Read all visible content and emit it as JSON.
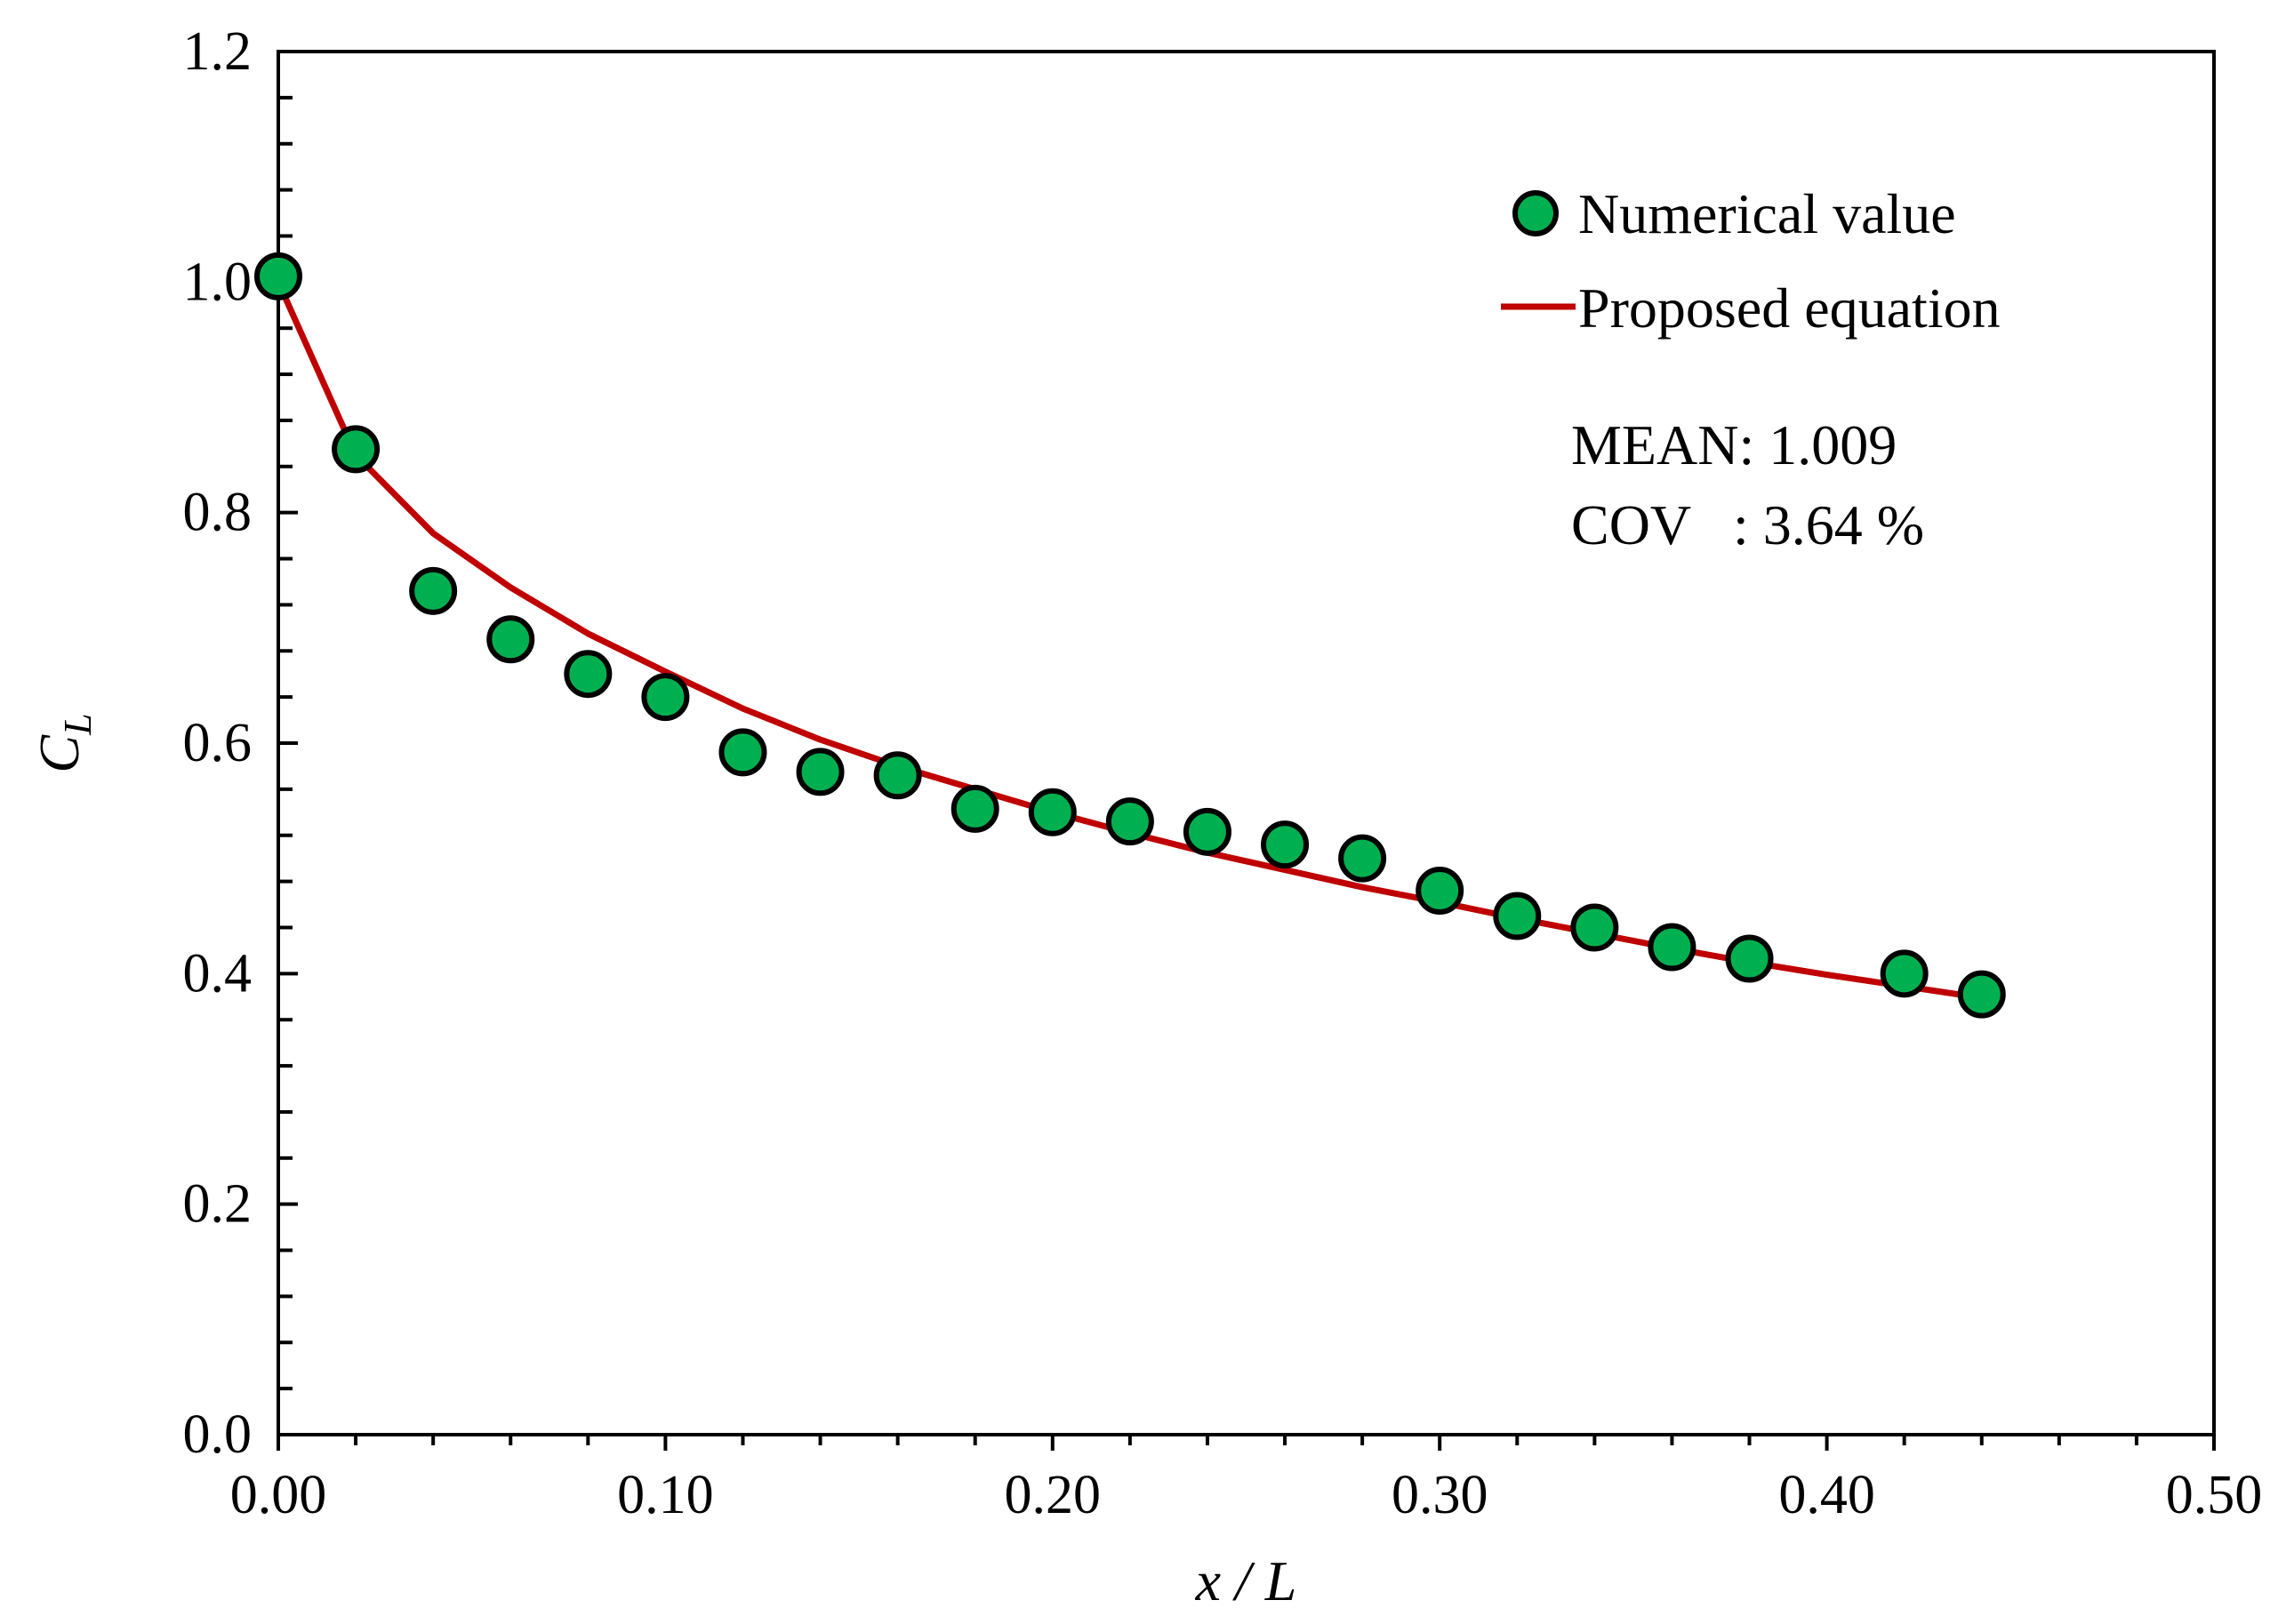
{
  "chart_data": {
    "type": "scatter",
    "xlabel": "x / L",
    "ylabel_main": "C",
    "ylabel_sub": "L",
    "xlim": [
      0,
      0.5
    ],
    "ylim": [
      0,
      1.2
    ],
    "x_ticks": [
      0,
      0.1,
      0.2,
      0.3,
      0.4,
      0.5
    ],
    "x_tick_labels": [
      "0.00",
      "0.10",
      "0.20",
      "0.30",
      "0.40",
      "0.50"
    ],
    "x_minor_step": 0.02,
    "y_ticks": [
      0,
      0.2,
      0.4,
      0.6,
      0.8,
      1.0,
      1.2
    ],
    "y_tick_labels": [
      "0.0",
      "0.2",
      "0.4",
      "0.6",
      "0.8",
      "1.0",
      "1.2"
    ],
    "y_minor_step": 0.04,
    "grid": false,
    "legend_position": "top-right",
    "series": [
      {
        "name": "Numerical value",
        "kind": "scatter",
        "color": "#00b050",
        "x": [
          0.0,
          0.02,
          0.04,
          0.06,
          0.08,
          0.1,
          0.12,
          0.14,
          0.16,
          0.18,
          0.2,
          0.22,
          0.24,
          0.26,
          0.28,
          0.3,
          0.32,
          0.34,
          0.36,
          0.38,
          0.42,
          0.44
        ],
        "y": [
          1.005,
          0.855,
          0.732,
          0.69,
          0.66,
          0.64,
          0.592,
          0.575,
          0.572,
          0.543,
          0.54,
          0.532,
          0.523,
          0.512,
          0.5,
          0.472,
          0.45,
          0.44,
          0.423,
          0.413,
          0.4,
          0.382
        ]
      },
      {
        "name": "Proposed equation",
        "kind": "line",
        "color": "#c00000",
        "x": [
          0.0,
          0.02,
          0.04,
          0.06,
          0.08,
          0.1,
          0.12,
          0.14,
          0.16,
          0.18,
          0.2,
          0.22,
          0.24,
          0.26,
          0.28,
          0.3,
          0.32,
          0.34,
          0.36,
          0.38,
          0.4,
          0.42,
          0.44
        ],
        "y": [
          1.0,
          0.85,
          0.782,
          0.735,
          0.695,
          0.662,
          0.63,
          0.603,
          0.58,
          0.56,
          0.54,
          0.522,
          0.505,
          0.49,
          0.475,
          0.462,
          0.448,
          0.435,
          0.422,
          0.41,
          0.399,
          0.389,
          0.379
        ]
      }
    ],
    "annotations": [
      "MEAN: 1.009",
      "COV   : 3.64 %"
    ]
  }
}
